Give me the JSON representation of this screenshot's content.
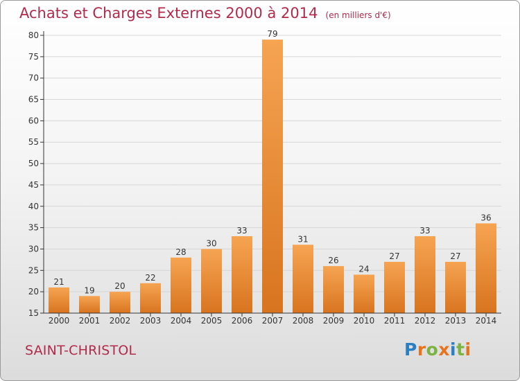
{
  "header": {
    "title": "Achats et Charges Externes 2000 à 2014",
    "unit": "(en milliers d'€)"
  },
  "commune": "SAINT-CHRISTOL",
  "logo": {
    "text": "Proxiti",
    "letter_colors": [
      "#2a7fc4",
      "#e8731e",
      "#7cb342",
      "#e8731e",
      "#2a7fc4",
      "#7cb342",
      "#e8731e"
    ]
  },
  "colors": {
    "title": "#b22a4a",
    "bar_light": "#f6a452",
    "bar_dark": "#d8741f",
    "axis": "#333333"
  },
  "chart_data": {
    "type": "bar",
    "title": "Achats et Charges Externes 2000 à 2014",
    "subtitle": "(en milliers d'€)",
    "categories": [
      "2000",
      "2001",
      "2002",
      "2003",
      "2004",
      "2005",
      "2006",
      "2007",
      "2008",
      "2009",
      "2010",
      "2011",
      "2012",
      "2013",
      "2014"
    ],
    "values": [
      21,
      19,
      20,
      22,
      28,
      30,
      33,
      79,
      31,
      26,
      24,
      27,
      33,
      27,
      36
    ],
    "ylim": [
      15,
      80
    ],
    "yticks": [
      15,
      20,
      25,
      30,
      35,
      40,
      45,
      50,
      55,
      60,
      65,
      70,
      75,
      80
    ],
    "grid": true,
    "data_labels": true
  }
}
